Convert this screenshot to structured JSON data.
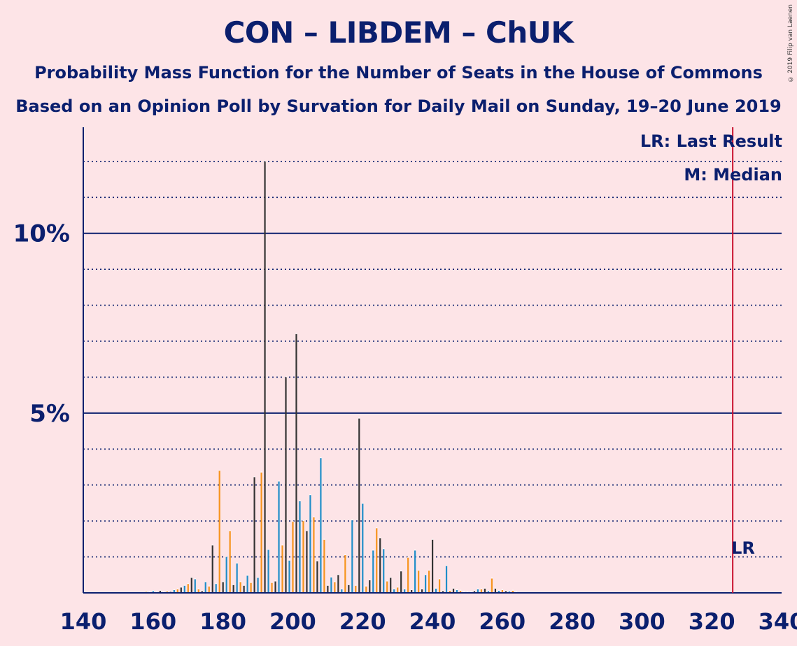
{
  "title": "CON – LIBDEM – ChUK",
  "subtitle1": "Probability Mass Function for the Number of Seats in the House of Commons",
  "subtitle2": "Based on an Opinion Poll by Survation for Daily Mail on Sunday, 19–20 June 2019",
  "copyright": "© 2019 Filip van Laenen",
  "colors": {
    "background": "#fde4e7",
    "text": "#0b1f6e",
    "bar_dark": "#333333",
    "bar_blue": "#1f8ec9",
    "bar_orange": "#f7941d",
    "last_result_line": "#c8102e"
  },
  "legend": {
    "last_result": "LR: Last Result",
    "median": "M: Median"
  },
  "markers": {
    "last_result_label": "LR",
    "last_result_seat": 326
  },
  "chart_data": {
    "type": "bar",
    "xlim": [
      140,
      340
    ],
    "ylim": [
      0,
      13
    ],
    "x_ticks": [
      140,
      160,
      180,
      200,
      220,
      240,
      260,
      280,
      300,
      320,
      340
    ],
    "y_ticks": [
      {
        "value": 5,
        "label": "5%"
      },
      {
        "value": 10,
        "label": "10%"
      }
    ],
    "minor_gridlines": [
      1,
      2,
      3,
      4,
      6,
      7,
      8,
      9,
      11,
      12
    ],
    "x": [
      158,
      159,
      160,
      161,
      162,
      163,
      164,
      165,
      166,
      167,
      168,
      169,
      170,
      171,
      172,
      173,
      174,
      175,
      176,
      177,
      178,
      179,
      180,
      181,
      182,
      183,
      184,
      185,
      186,
      187,
      188,
      189,
      190,
      191,
      192,
      193,
      194,
      195,
      196,
      197,
      198,
      199,
      200,
      201,
      202,
      203,
      204,
      205,
      206,
      207,
      208,
      209,
      210,
      211,
      212,
      213,
      214,
      215,
      216,
      217,
      218,
      219,
      220,
      221,
      222,
      223,
      224,
      225,
      226,
      227,
      228,
      229,
      230,
      231,
      232,
      233,
      234,
      235,
      236,
      237,
      238,
      239,
      240,
      241,
      242,
      243,
      244,
      245,
      246,
      247,
      248,
      249,
      250,
      251,
      252,
      253,
      254,
      255,
      256,
      257,
      258,
      259,
      260,
      261,
      262,
      263,
      264
    ],
    "values": [
      0.03,
      0.02,
      0.05,
      0.02,
      0.06,
      0.02,
      0.04,
      0.03,
      0.08,
      0.1,
      0.15,
      0.2,
      0.25,
      0.42,
      0.38,
      0.1,
      0.05,
      0.3,
      0.18,
      1.32,
      0.25,
      3.4,
      0.3,
      1.0,
      1.72,
      0.22,
      0.82,
      0.3,
      0.2,
      0.48,
      0.28,
      3.22,
      0.42,
      3.35,
      12.0,
      1.2,
      0.28,
      0.32,
      3.1,
      1.32,
      6.0,
      0.9,
      1.98,
      7.2,
      2.55,
      2.0,
      1.72,
      2.72,
      2.1,
      0.88,
      3.75,
      1.48,
      0.2,
      0.43,
      0.3,
      0.5,
      0.1,
      1.05,
      0.22,
      2.02,
      0.2,
      4.85,
      2.48,
      0.18,
      0.35,
      1.18,
      1.8,
      1.52,
      1.22,
      0.32,
      0.42,
      0.1,
      0.15,
      0.6,
      0.1,
      0.98,
      0.08,
      1.18,
      0.62,
      0.1,
      0.5,
      0.62,
      1.48,
      0.12,
      0.38,
      0.05,
      0.75,
      0.06,
      0.12,
      0.08,
      0.06,
      0.02,
      0.02,
      0.02,
      0.05,
      0.1,
      0.1,
      0.12,
      0.05,
      0.4,
      0.12,
      0.06,
      0.08,
      0.05,
      0.04,
      0.06,
      0.02
    ],
    "series_cycle": [
      "orange",
      "dark",
      "blue"
    ]
  }
}
